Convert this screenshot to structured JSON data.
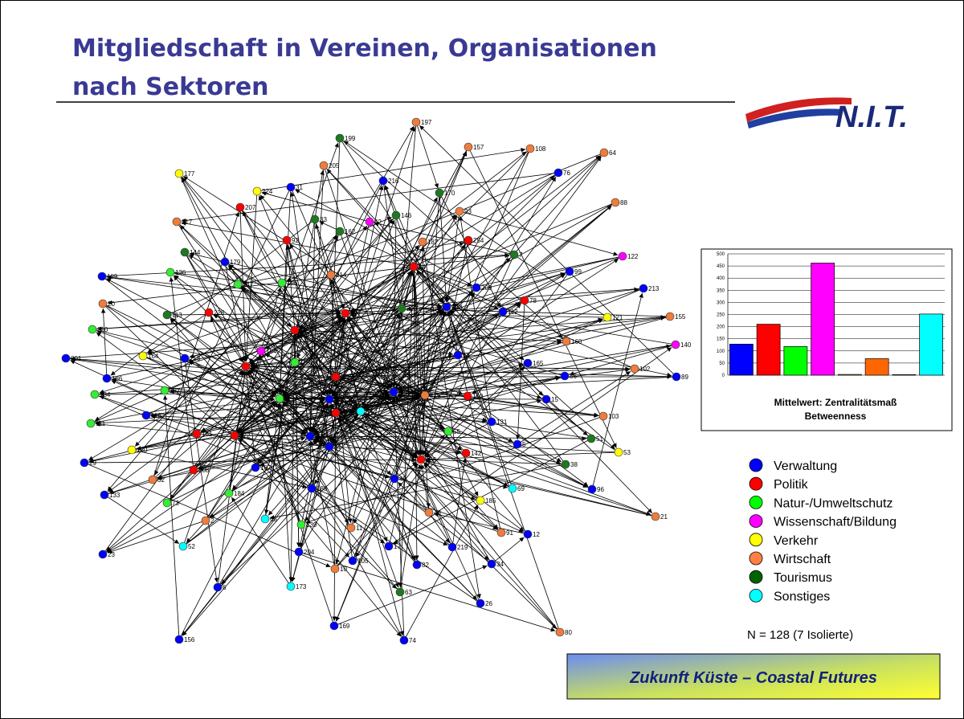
{
  "header": {
    "title_lines": [
      "Mitgliedschaft in Vereinen, Organisationen",
      "nach Sektoren"
    ],
    "logo": "N.I.T."
  },
  "network": {
    "nodes": [
      {
        "label": "197",
        "color": "#f07c3c"
      },
      {
        "label": "199",
        "color": "#1e7a1e"
      },
      {
        "label": "157",
        "color": "#f07c3c"
      },
      {
        "label": "108",
        "color": "#f07c3c"
      },
      {
        "label": "64",
        "color": "#f07c3c"
      },
      {
        "label": "205",
        "color": "#f07c3c"
      },
      {
        "label": "177",
        "color": "#ffff00"
      },
      {
        "label": "76",
        "color": "#0000ff"
      },
      {
        "label": "216",
        "color": "#0000ff"
      },
      {
        "label": "31",
        "color": "#0000ff"
      },
      {
        "label": "224",
        "color": "#ffff00"
      },
      {
        "label": "170",
        "color": "#1e7a1e"
      },
      {
        "label": "88",
        "color": "#f07c3c"
      },
      {
        "label": "207",
        "color": "#ff0000"
      },
      {
        "label": "93",
        "color": "#f07c3c"
      },
      {
        "label": "33",
        "color": "#1e7a1e"
      },
      {
        "label": "146",
        "color": "#1e7a1e"
      },
      {
        "label": "42",
        "color": "#ff00ff"
      },
      {
        "label": "217",
        "color": "#f07c3c"
      },
      {
        "label": "162",
        "color": "#1e7a1e"
      },
      {
        "label": "187",
        "color": "#f07c3c"
      },
      {
        "label": "254",
        "color": "#ff0000"
      },
      {
        "label": "92",
        "color": "#ff0000"
      },
      {
        "label": "144",
        "color": "#1e7a1e"
      },
      {
        "label": "7",
        "color": "#1e7a1e"
      },
      {
        "label": "122",
        "color": "#ff00ff"
      },
      {
        "label": "179",
        "color": "#0000ff"
      },
      {
        "label": "44",
        "color": "#ff0000"
      },
      {
        "label": "136",
        "color": "#33ee33"
      },
      {
        "label": "214",
        "color": "#f07c3c"
      },
      {
        "label": "99",
        "color": "#0000ff"
      },
      {
        "label": "189",
        "color": "#0000ff"
      },
      {
        "label": "147",
        "color": "#33ee33"
      },
      {
        "label": "196",
        "color": "#33ee33"
      },
      {
        "label": "209",
        "color": "#0000ff"
      },
      {
        "label": "213",
        "color": "#0000ff"
      },
      {
        "label": "78",
        "color": "#ff0000"
      },
      {
        "label": "20",
        "color": "#f07c3c"
      },
      {
        "label": "220",
        "color": "#1e7a1e"
      },
      {
        "label": "123",
        "color": "#0000ff"
      },
      {
        "label": "112",
        "color": "#0000ff"
      },
      {
        "label": "113",
        "color": "#1e7a1e"
      },
      {
        "label": "228",
        "color": "#ff0000"
      },
      {
        "label": "39",
        "color": "#ff0000"
      },
      {
        "label": "121",
        "color": "#ffff00"
      },
      {
        "label": "155",
        "color": "#f07c3c"
      },
      {
        "label": "210",
        "color": "#33ee33"
      },
      {
        "label": "79",
        "color": "#ff0000"
      },
      {
        "label": "160",
        "color": "#f07c3c"
      },
      {
        "label": "140",
        "color": "#ff00ff"
      },
      {
        "label": "154",
        "color": "#ff00ff"
      },
      {
        "label": "18",
        "color": "#0000ff"
      },
      {
        "label": "201",
        "color": "#0000ff"
      },
      {
        "label": "164",
        "color": "#ffff00"
      },
      {
        "label": "218",
        "color": "#0000ff"
      },
      {
        "label": "158",
        "color": "#33ee33"
      },
      {
        "label": "165",
        "color": "#0000ff"
      },
      {
        "label": "56",
        "color": "#ff0000"
      },
      {
        "label": "102",
        "color": "#f07c3c"
      },
      {
        "label": "222",
        "color": "#ff0000"
      },
      {
        "label": "86",
        "color": "#0000ff"
      },
      {
        "label": "89",
        "color": "#0000ff"
      },
      {
        "label": "186",
        "color": "#0000ff"
      },
      {
        "label": "137",
        "color": "#33ee33"
      },
      {
        "label": "134",
        "color": "#33ee33"
      },
      {
        "label": "229",
        "color": "#0000ff"
      },
      {
        "label": "225",
        "color": "#f07c3c"
      },
      {
        "label": "190",
        "color": "#ff0000"
      },
      {
        "label": "119",
        "color": "#33ee33"
      },
      {
        "label": "46",
        "color": "#0000ff"
      },
      {
        "label": "15",
        "color": "#0000ff"
      },
      {
        "label": "221",
        "color": "#ff0000"
      },
      {
        "label": "54",
        "color": "#00ffff"
      },
      {
        "label": "116",
        "color": "#0000ff"
      },
      {
        "label": "103",
        "color": "#f07c3c"
      },
      {
        "label": "131",
        "color": "#0000ff"
      },
      {
        "label": "111",
        "color": "#33ee33"
      },
      {
        "label": "161",
        "color": "#ff0000"
      },
      {
        "label": "172",
        "color": "#ff0000"
      },
      {
        "label": "109",
        "color": "#0000ff"
      },
      {
        "label": "55",
        "color": "#33ee33"
      },
      {
        "label": "51",
        "color": "#1e7a1e"
      },
      {
        "label": "81",
        "color": "#0000ff"
      },
      {
        "label": "5",
        "color": "#0000ff"
      },
      {
        "label": "150",
        "color": "#ffff00"
      },
      {
        "label": "53",
        "color": "#ffff00"
      },
      {
        "label": "142",
        "color": "#ff0000"
      },
      {
        "label": "135",
        "color": "#ff0000"
      },
      {
        "label": "29",
        "color": "#0000ff"
      },
      {
        "label": "208",
        "color": "#ff0000"
      },
      {
        "label": "107",
        "color": "#0000ff"
      },
      {
        "label": "38",
        "color": "#1e7a1e"
      },
      {
        "label": "32",
        "color": "#f07c3c"
      },
      {
        "label": "184",
        "color": "#33ee33"
      },
      {
        "label": "49",
        "color": "#0000ff"
      },
      {
        "label": "188",
        "color": "#0000ff"
      },
      {
        "label": "96",
        "color": "#0000ff"
      },
      {
        "label": "69",
        "color": "#00ffff"
      },
      {
        "label": "133",
        "color": "#0000ff"
      },
      {
        "label": "73",
        "color": "#33ee33"
      },
      {
        "label": "185",
        "color": "#ffff00"
      },
      {
        "label": "48",
        "color": "#f07c3c"
      },
      {
        "label": "65",
        "color": "#00ffff"
      },
      {
        "label": "139",
        "color": "#33ee33"
      },
      {
        "label": "21",
        "color": "#f07c3c"
      },
      {
        "label": "2",
        "color": "#f07c3c"
      },
      {
        "label": "11",
        "color": "#f07c3c"
      },
      {
        "label": "91",
        "color": "#f07c3c"
      },
      {
        "label": "12",
        "color": "#0000ff"
      },
      {
        "label": "52",
        "color": "#00ffff"
      },
      {
        "label": "17",
        "color": "#0000ff"
      },
      {
        "label": "219",
        "color": "#0000ff"
      },
      {
        "label": "204",
        "color": "#0000ff"
      },
      {
        "label": "105",
        "color": "#0000ff"
      },
      {
        "label": "82",
        "color": "#0000ff"
      },
      {
        "label": "34",
        "color": "#0000ff"
      },
      {
        "label": "23",
        "color": "#0000ff"
      },
      {
        "label": "10",
        "color": "#f07c3c"
      },
      {
        "label": "173",
        "color": "#00ffff"
      },
      {
        "label": "6",
        "color": "#0000ff"
      },
      {
        "label": "63",
        "color": "#1e7a1e"
      },
      {
        "label": "26",
        "color": "#0000ff"
      },
      {
        "label": "169",
        "color": "#0000ff"
      },
      {
        "label": "80",
        "color": "#f07c3c"
      },
      {
        "label": "156",
        "color": "#0000ff"
      },
      {
        "label": "74",
        "color": "#0000ff"
      }
    ]
  },
  "chart_data": {
    "type": "bar",
    "title": "Mittelwert: Zentralitätsmaß Betweenness",
    "categories": [
      null,
      null,
      null,
      null,
      null,
      null,
      null,
      null
    ],
    "values": [
      128,
      210,
      118,
      462,
      3,
      68,
      2,
      252
    ],
    "colors": [
      "#0000ff",
      "#ff0000",
      "#00ff00",
      "#ff00ff",
      "#ffff00",
      "#ff6600",
      "#006400",
      "#00ffff"
    ],
    "ylim": [
      0,
      500
    ],
    "yticks": [
      0,
      50,
      100,
      150,
      200,
      250,
      300,
      350,
      400,
      450,
      500
    ],
    "grid": true
  },
  "legend": [
    {
      "name": "Verwaltung",
      "color": "#0000ff"
    },
    {
      "name": "Politik",
      "color": "#ff0000"
    },
    {
      "name": "Natur-/Umweltschutz",
      "color": "#00ff00"
    },
    {
      "name": "Wissenschaft/Bildung",
      "color": "#ff00ff"
    },
    {
      "name": "Verkehr",
      "color": "#ffff00"
    },
    {
      "name": "Wirtschaft",
      "color": "#ff8040"
    },
    {
      "name": "Tourismus",
      "color": "#006400"
    },
    {
      "name": "Sonstiges",
      "color": "#00ffff"
    }
  ],
  "note": "N = 128 (7 Isolierte)",
  "footer": "Zukunft Küste – Coastal Futures"
}
